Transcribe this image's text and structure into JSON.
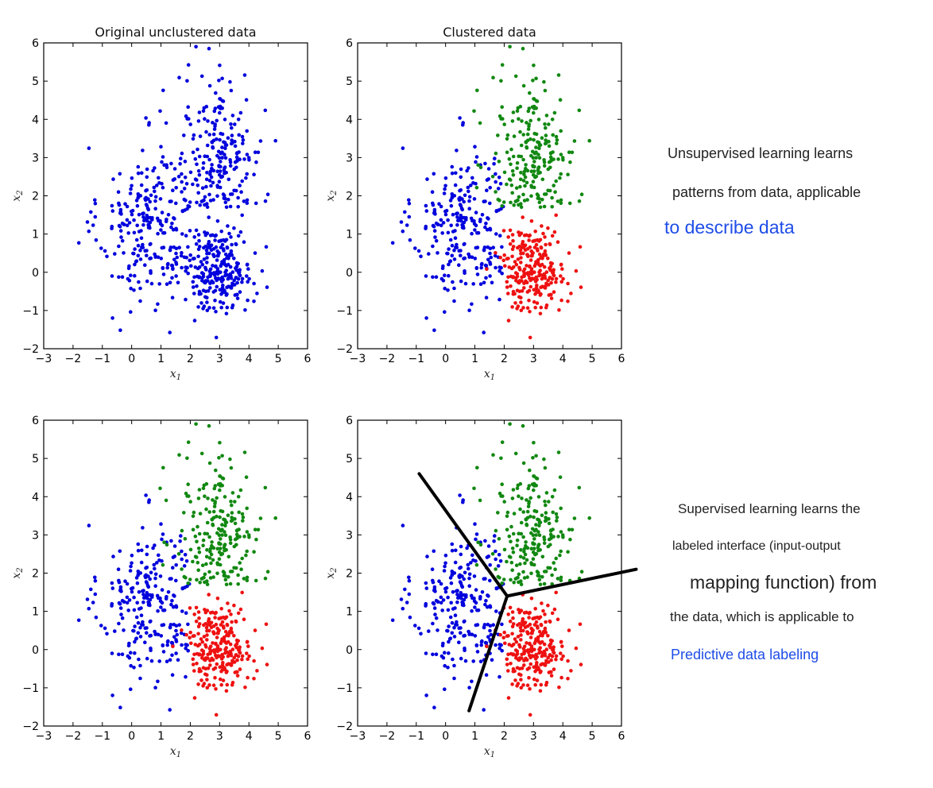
{
  "side_text": {
    "unsupervised": {
      "line1": "Unsupervised learning learns",
      "line2": "patterns from data, applicable",
      "line3": "to describe data"
    },
    "supervised": {
      "line1": "Supervised learning learns the",
      "line2": "labeled interface (input-output",
      "line3": "mapping function) from",
      "line4": "the data, which is applicable to",
      "line5": "Predictive data labeling"
    }
  },
  "colors": {
    "blue": "#0000dd",
    "green": "#118811",
    "red": "#ee1111",
    "accent_text": "#1f4de8"
  },
  "chart_data": [
    {
      "type": "scatter",
      "title": "Original unclustered data",
      "xlabel": "x1",
      "ylabel": "x2",
      "xlim": [
        -3,
        6
      ],
      "ylim": [
        -2,
        6
      ],
      "xticks": [
        "−3",
        "−2",
        "−1",
        "0",
        "1",
        "2",
        "3",
        "4",
        "5",
        "6"
      ],
      "yticks": [
        "−2",
        "−1",
        "0",
        "1",
        "2",
        "3",
        "4",
        "5",
        "6"
      ],
      "colored_by_cluster": false,
      "series": [
        {
          "color": "blue",
          "cluster": "all",
          "points": []
        }
      ]
    },
    {
      "type": "scatter",
      "title": "Clustered data",
      "xlabel": "x1",
      "ylabel": "x2",
      "xlim": [
        -3,
        6
      ],
      "ylim": [
        -2,
        6
      ],
      "xticks": [
        "−3",
        "−2",
        "−1",
        "0",
        "1",
        "2",
        "3",
        "4",
        "5",
        "6"
      ],
      "yticks": [
        "−2",
        "−1",
        "0",
        "1",
        "2",
        "3",
        "4",
        "5",
        "6"
      ],
      "colored_by_cluster": true,
      "series": [
        {
          "color": "blue",
          "cluster": "left"
        },
        {
          "color": "green",
          "cluster": "top-right"
        },
        {
          "color": "red",
          "cluster": "bottom-right"
        }
      ]
    },
    {
      "type": "scatter",
      "title": "",
      "xlabel": "x1",
      "ylabel": "x2",
      "xlim": [
        -3,
        6
      ],
      "ylim": [
        -2,
        6
      ],
      "xticks": [
        "−3",
        "−2",
        "−1",
        "0",
        "1",
        "2",
        "3",
        "4",
        "5",
        "6"
      ],
      "yticks": [
        "−2",
        "−1",
        "0",
        "1",
        "2",
        "3",
        "4",
        "5",
        "6"
      ],
      "colored_by_cluster": true,
      "series": [
        {
          "color": "blue",
          "cluster": "left"
        },
        {
          "color": "green",
          "cluster": "top-right"
        },
        {
          "color": "red",
          "cluster": "bottom-right"
        }
      ]
    },
    {
      "type": "scatter",
      "title": "",
      "xlabel": "x1",
      "ylabel": "x2",
      "xlim": [
        -3,
        6
      ],
      "ylim": [
        -2,
        6
      ],
      "xticks": [
        "−3",
        "−2",
        "−1",
        "0",
        "1",
        "2",
        "3",
        "4",
        "5",
        "6"
      ],
      "yticks": [
        "−2",
        "−1",
        "0",
        "1",
        "2",
        "3",
        "4",
        "5",
        "6"
      ],
      "colored_by_cluster": true,
      "series": [
        {
          "color": "blue",
          "cluster": "left"
        },
        {
          "color": "green",
          "cluster": "top-right"
        },
        {
          "color": "red",
          "cluster": "bottom-right"
        }
      ],
      "decision_boundary": {
        "center": [
          2.1,
          1.4
        ],
        "rays_to": [
          [
            -0.9,
            4.6
          ],
          [
            6.5,
            2.1
          ],
          [
            0.8,
            -1.6
          ]
        ]
      }
    }
  ],
  "clusters": {
    "left": {
      "center": [
        0.6,
        1.2
      ],
      "spread": [
        0.85,
        1.05
      ],
      "count": 250
    },
    "top-right": {
      "center": [
        3.0,
        3.1
      ],
      "spread": [
        0.75,
        1.05
      ],
      "count": 220
    },
    "bottom-right": {
      "center": [
        3.0,
        0.1
      ],
      "spread": [
        0.55,
        0.55
      ],
      "count": 250
    }
  }
}
